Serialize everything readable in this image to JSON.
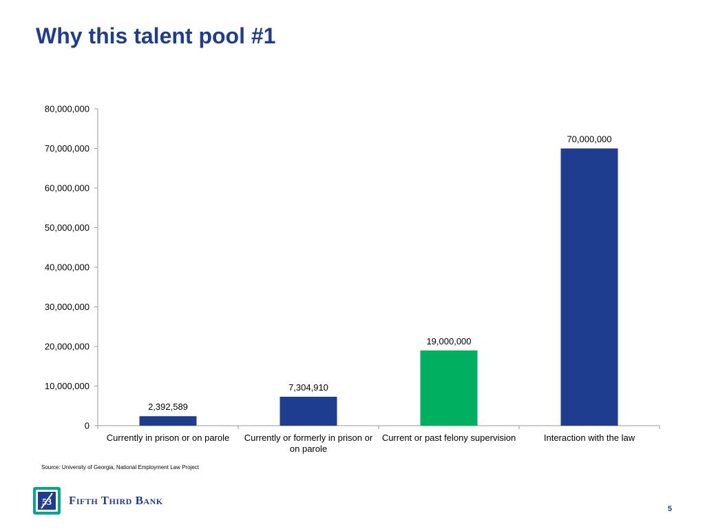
{
  "slide": {
    "title": "Why this talent pool #1",
    "source": "Source: University of Georgia, National Employment Law Project",
    "page_number": "5"
  },
  "logo": {
    "text": "Fifth Third Bank",
    "mark": "53"
  },
  "colors": {
    "title": "#1f3d8f",
    "bar_blue": "#1f3d8f",
    "bar_green": "#00b060",
    "axis": "#999999"
  },
  "chart_data": {
    "type": "bar",
    "title": "",
    "xlabel": "",
    "ylabel": "",
    "ylim": [
      0,
      80000000
    ],
    "ytick_values": [
      0,
      10000000,
      20000000,
      30000000,
      40000000,
      50000000,
      60000000,
      70000000,
      80000000
    ],
    "ytick_labels": [
      "0",
      "10,000,000",
      "20,000,000",
      "30,000,000",
      "40,000,000",
      "50,000,000",
      "60,000,000",
      "70,000,000",
      "80,000,000"
    ],
    "categories": [
      "Currently in prison or on parole",
      "Currently or formerly in prison or on parole",
      "Current or past felony supervision",
      "Interaction with the law"
    ],
    "values": [
      2392589,
      7304910,
      19000000,
      70000000
    ],
    "value_labels": [
      "2,392,589",
      "7,304,910",
      "19,000,000",
      "70,000,000"
    ],
    "bar_colors": [
      "#1f3d8f",
      "#1f3d8f",
      "#00b060",
      "#1f3d8f"
    ],
    "grid": false,
    "legend": "none"
  }
}
